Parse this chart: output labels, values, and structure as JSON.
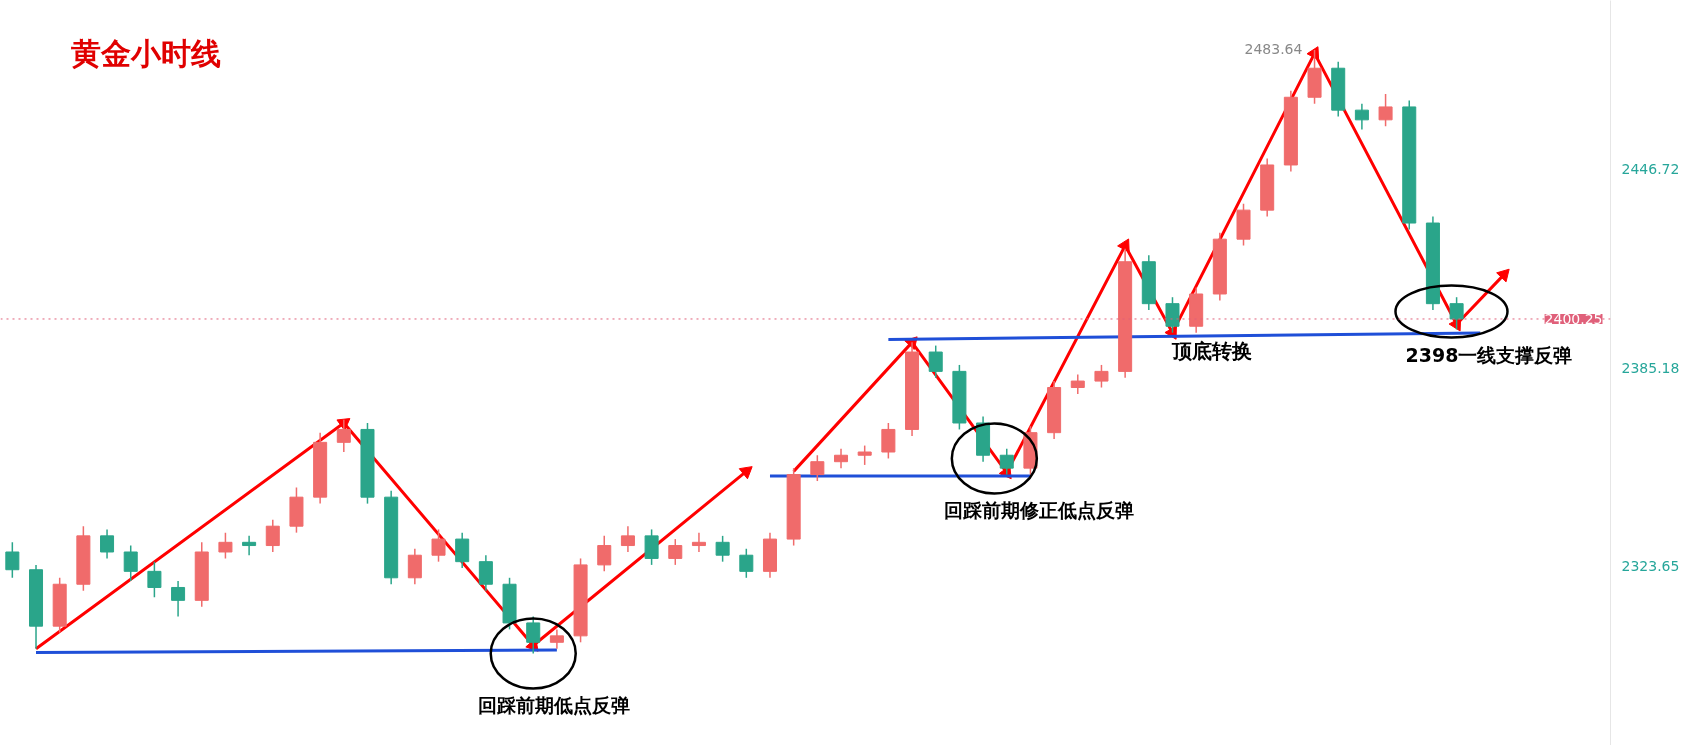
{
  "chart_data": {
    "type": "candlestick",
    "title": "黄金小时线",
    "categories": [
      null,
      null,
      null,
      null,
      null,
      null,
      null,
      null,
      null,
      null,
      null,
      null,
      null,
      null,
      null,
      null,
      null,
      null,
      null,
      null,
      null,
      null,
      null,
      null,
      null,
      null,
      null,
      null,
      null,
      null,
      null,
      null,
      null,
      null,
      null,
      null,
      null,
      null,
      null,
      null,
      null,
      null,
      null,
      null,
      null,
      null,
      null,
      null,
      null,
      null,
      null,
      null,
      null,
      null,
      null,
      null,
      null,
      null,
      null,
      null,
      null,
      null,
      null,
      null,
      null,
      null,
      null,
      null
    ],
    "ohlc": [
      [
        2328,
        2331,
        2320,
        2322.5
      ],
      [
        2322.5,
        2324,
        2298,
        2305
      ],
      [
        2305,
        2320,
        2303,
        2318
      ],
      [
        2318,
        2336,
        2316,
        2333
      ],
      [
        2333,
        2335,
        2326,
        2328
      ],
      [
        2328,
        2330,
        2319,
        2322
      ],
      [
        2322,
        2325,
        2314,
        2317
      ],
      [
        2317,
        2319,
        2308,
        2313
      ],
      [
        2313,
        2331,
        2311,
        2328
      ],
      [
        2328,
        2334,
        2326,
        2331
      ],
      [
        2331,
        2333,
        2327,
        2330
      ],
      [
        2330,
        2338,
        2328,
        2336
      ],
      [
        2336,
        2348,
        2334,
        2345
      ],
      [
        2345,
        2365,
        2343,
        2362
      ],
      [
        2362,
        2369,
        2359,
        2366
      ],
      [
        2366,
        2368,
        2343,
        2345
      ],
      [
        2345,
        2347,
        2318,
        2320
      ],
      [
        2320,
        2329,
        2318,
        2327
      ],
      [
        2327,
        2335,
        2325,
        2332
      ],
      [
        2332,
        2334,
        2323,
        2325
      ],
      [
        2325,
        2327,
        2316,
        2318
      ],
      [
        2318,
        2320,
        2304,
        2306
      ],
      [
        2306,
        2308,
        2296.5,
        2300
      ],
      [
        2300,
        2304,
        2298,
        2302
      ],
      [
        2302,
        2326,
        2300,
        2324
      ],
      [
        2324,
        2333,
        2322,
        2330
      ],
      [
        2330,
        2336,
        2328,
        2333
      ],
      [
        2333,
        2335,
        2324,
        2326
      ],
      [
        2326,
        2332,
        2324,
        2330
      ],
      [
        2330,
        2334,
        2328,
        2331
      ],
      [
        2331,
        2333,
        2325,
        2327
      ],
      [
        2327,
        2329,
        2320,
        2322
      ],
      [
        2322,
        2334,
        2320,
        2332
      ],
      [
        2332,
        2354,
        2330,
        2352
      ],
      [
        2352,
        2358,
        2350,
        2356
      ],
      [
        2356,
        2360,
        2354,
        2358
      ],
      [
        2358,
        2361,
        2355,
        2359
      ],
      [
        2359,
        2368,
        2357,
        2366
      ],
      [
        2366,
        2393,
        2364,
        2390
      ],
      [
        2390,
        2392,
        2382,
        2384
      ],
      [
        2384,
        2386,
        2366,
        2368
      ],
      [
        2368,
        2370,
        2356,
        2358
      ],
      [
        2358,
        2360,
        2352,
        2354
      ],
      [
        2354,
        2367,
        2352,
        2365
      ],
      [
        2365,
        2381,
        2363,
        2379
      ],
      [
        2379,
        2383,
        2377,
        2381
      ],
      [
        2381,
        2386,
        2379,
        2384
      ],
      [
        2384,
        2422,
        2382,
        2418
      ],
      [
        2418,
        2420,
        2403,
        2405
      ],
      [
        2405,
        2407,
        2396,
        2398
      ],
      [
        2398,
        2410,
        2396,
        2408
      ],
      [
        2408,
        2427,
        2406,
        2425
      ],
      [
        2425,
        2436,
        2423,
        2434
      ],
      [
        2434,
        2450,
        2432,
        2448
      ],
      [
        2448,
        2471,
        2446,
        2469
      ],
      [
        2469,
        2483.64,
        2467,
        2478
      ],
      [
        2478,
        2480,
        2463,
        2465
      ],
      [
        2465,
        2467,
        2459,
        2462
      ],
      [
        2462,
        2470,
        2460,
        2466
      ],
      [
        2466,
        2468,
        2428,
        2430
      ],
      [
        2430,
        2432,
        2403,
        2405
      ],
      [
        2405,
        2407,
        2397,
        2400.25
      ],
      null,
      null,
      null,
      null,
      null,
      null
    ],
    "colors": [
      "#2aa58a",
      "#2aa58a",
      "#f06b6b",
      "#f06b6b",
      "#2aa58a",
      "#2aa58a",
      "#2aa58a",
      "#2aa58a",
      "#f06b6b",
      "#f06b6b",
      "#2aa58a",
      "#f06b6b",
      "#f06b6b",
      "#f06b6b",
      "#f06b6b",
      "#2aa58a",
      "#2aa58a",
      "#f06b6b",
      "#f06b6b",
      "#2aa58a",
      "#2aa58a",
      "#2aa58a",
      "#2aa58a",
      "#f06b6b",
      "#f06b6b",
      "#f06b6b",
      "#f06b6b",
      "#2aa58a",
      "#f06b6b",
      "#f06b6b",
      "#2aa58a",
      "#2aa58a",
      "#f06b6b",
      "#f06b6b",
      "#f06b6b",
      "#f06b6b",
      "#f06b6b",
      "#f06b6b",
      "#f06b6b",
      "#2aa58a",
      "#2aa58a",
      "#2aa58a",
      "#2aa58a",
      "#f06b6b",
      "#f06b6b",
      "#f06b6b",
      "#f06b6b",
      "#f06b6b",
      "#2aa58a",
      "#2aa58a",
      "#f06b6b",
      "#f06b6b",
      "#f06b6b",
      "#f06b6b",
      "#f06b6b",
      "#f06b6b",
      "#2aa58a",
      "#2aa58a",
      "#f06b6b",
      "#2aa58a",
      "#2aa58a",
      "#2aa58a",
      null,
      null,
      null,
      null,
      null,
      null
    ],
    "ylim": [
      2268,
      2499
    ],
    "yticks": [
      2323.65,
      2385.18,
      2446.72
    ],
    "tick_labels": "y",
    "grid": false,
    "series": [
      {
        "type": "line",
        "color": "#ff0000",
        "marker": "triangle",
        "values": [
          null,
          2298,
          null,
          null,
          null,
          null,
          null,
          null,
          null,
          null,
          null,
          null,
          null,
          null,
          2368,
          null,
          null,
          null,
          null,
          null,
          null,
          null,
          2299,
          null,
          null,
          null,
          null,
          null,
          null,
          null,
          null,
          2353,
          null,
          null,
          null,
          null,
          null,
          null,
          null,
          null,
          null,
          null,
          null,
          null,
          null,
          null,
          null,
          null,
          null,
          null,
          null,
          null,
          null,
          null,
          null,
          null,
          null,
          null,
          null,
          null,
          null,
          null,
          null,
          null,
          null,
          null,
          null,
          null
        ]
      },
      {
        "type": "line",
        "color": "#ff0000",
        "marker": "triangle",
        "values": [
          null,
          null,
          null,
          null,
          null,
          null,
          null,
          null,
          null,
          null,
          null,
          null,
          null,
          null,
          null,
          null,
          null,
          null,
          null,
          null,
          null,
          null,
          null,
          null,
          null,
          null,
          null,
          null,
          null,
          null,
          null,
          null,
          null,
          2353,
          null,
          null,
          null,
          null,
          2393,
          null,
          null,
          null,
          2352.6,
          null,
          null,
          null,
          null,
          2423,
          null,
          2396,
          null,
          null,
          null,
          null,
          null,
          2482.6,
          null,
          null,
          null,
          null,
          null,
          2398.6,
          null,
          2414,
          null,
          null,
          null,
          null
        ]
      },
      {
        "type": "line",
        "color": "#1f4fd8",
        "values": [
          null,
          2296.8,
          null,
          null,
          null,
          null,
          null,
          null,
          null,
          null,
          null,
          null,
          null,
          null,
          null,
          null,
          null,
          null,
          null,
          null,
          null,
          null,
          null,
          2297.6,
          null,
          null,
          null,
          null,
          null,
          null,
          null,
          null,
          null,
          null,
          null,
          null,
          null,
          null,
          null,
          null,
          null,
          null,
          null,
          null,
          null,
          null,
          null,
          null,
          null,
          null,
          null,
          null,
          null,
          null,
          null,
          null,
          null,
          null,
          null,
          null,
          null,
          null,
          null,
          null,
          null,
          null,
          null,
          null
        ]
      },
      {
        "type": "line",
        "color": "#1f4fd8",
        "values": [
          null,
          null,
          null,
          null,
          null,
          null,
          null,
          null,
          null,
          null,
          null,
          null,
          null,
          null,
          null,
          null,
          null,
          null,
          null,
          null,
          null,
          null,
          null,
          null,
          null,
          null,
          null,
          null,
          null,
          null,
          null,
          null,
          2351.6,
          null,
          null,
          null,
          null,
          null,
          null,
          null,
          null,
          null,
          null,
          2351.6,
          null,
          null,
          null,
          null,
          null,
          null,
          null,
          null,
          null,
          null,
          null,
          null,
          null,
          null,
          null,
          null,
          null,
          null,
          null,
          null,
          null,
          null,
          null,
          null
        ]
      },
      {
        "type": "line",
        "color": "#1f4fd8",
        "values": [
          null,
          null,
          null,
          null,
          null,
          null,
          null,
          null,
          null,
          null,
          null,
          null,
          null,
          null,
          null,
          null,
          null,
          null,
          null,
          null,
          null,
          null,
          null,
          null,
          null,
          null,
          null,
          null,
          null,
          null,
          null,
          null,
          null,
          null,
          null,
          null,
          null,
          2393.9,
          null,
          null,
          null,
          null,
          null,
          null,
          null,
          null,
          null,
          null,
          null,
          null,
          null,
          null,
          null,
          null,
          null,
          null,
          null,
          null,
          null,
          null,
          null,
          null,
          2395.9,
          null,
          null,
          null,
          null,
          null
        ]
      }
    ],
    "ref_lines": [
      {
        "axis": "y",
        "value": 2400.25,
        "label": "2400.25",
        "color": "#e0607a",
        "line_style": "dotted"
      }
    ],
    "annotations": [
      {
        "text": "回踩前期低点反弹",
        "y": 2296.5
      },
      "回踩前期修正低点反弹",
      "2398一线支撑反弹",
      "2483.64",
      "顶底转换"
    ]
  }
}
